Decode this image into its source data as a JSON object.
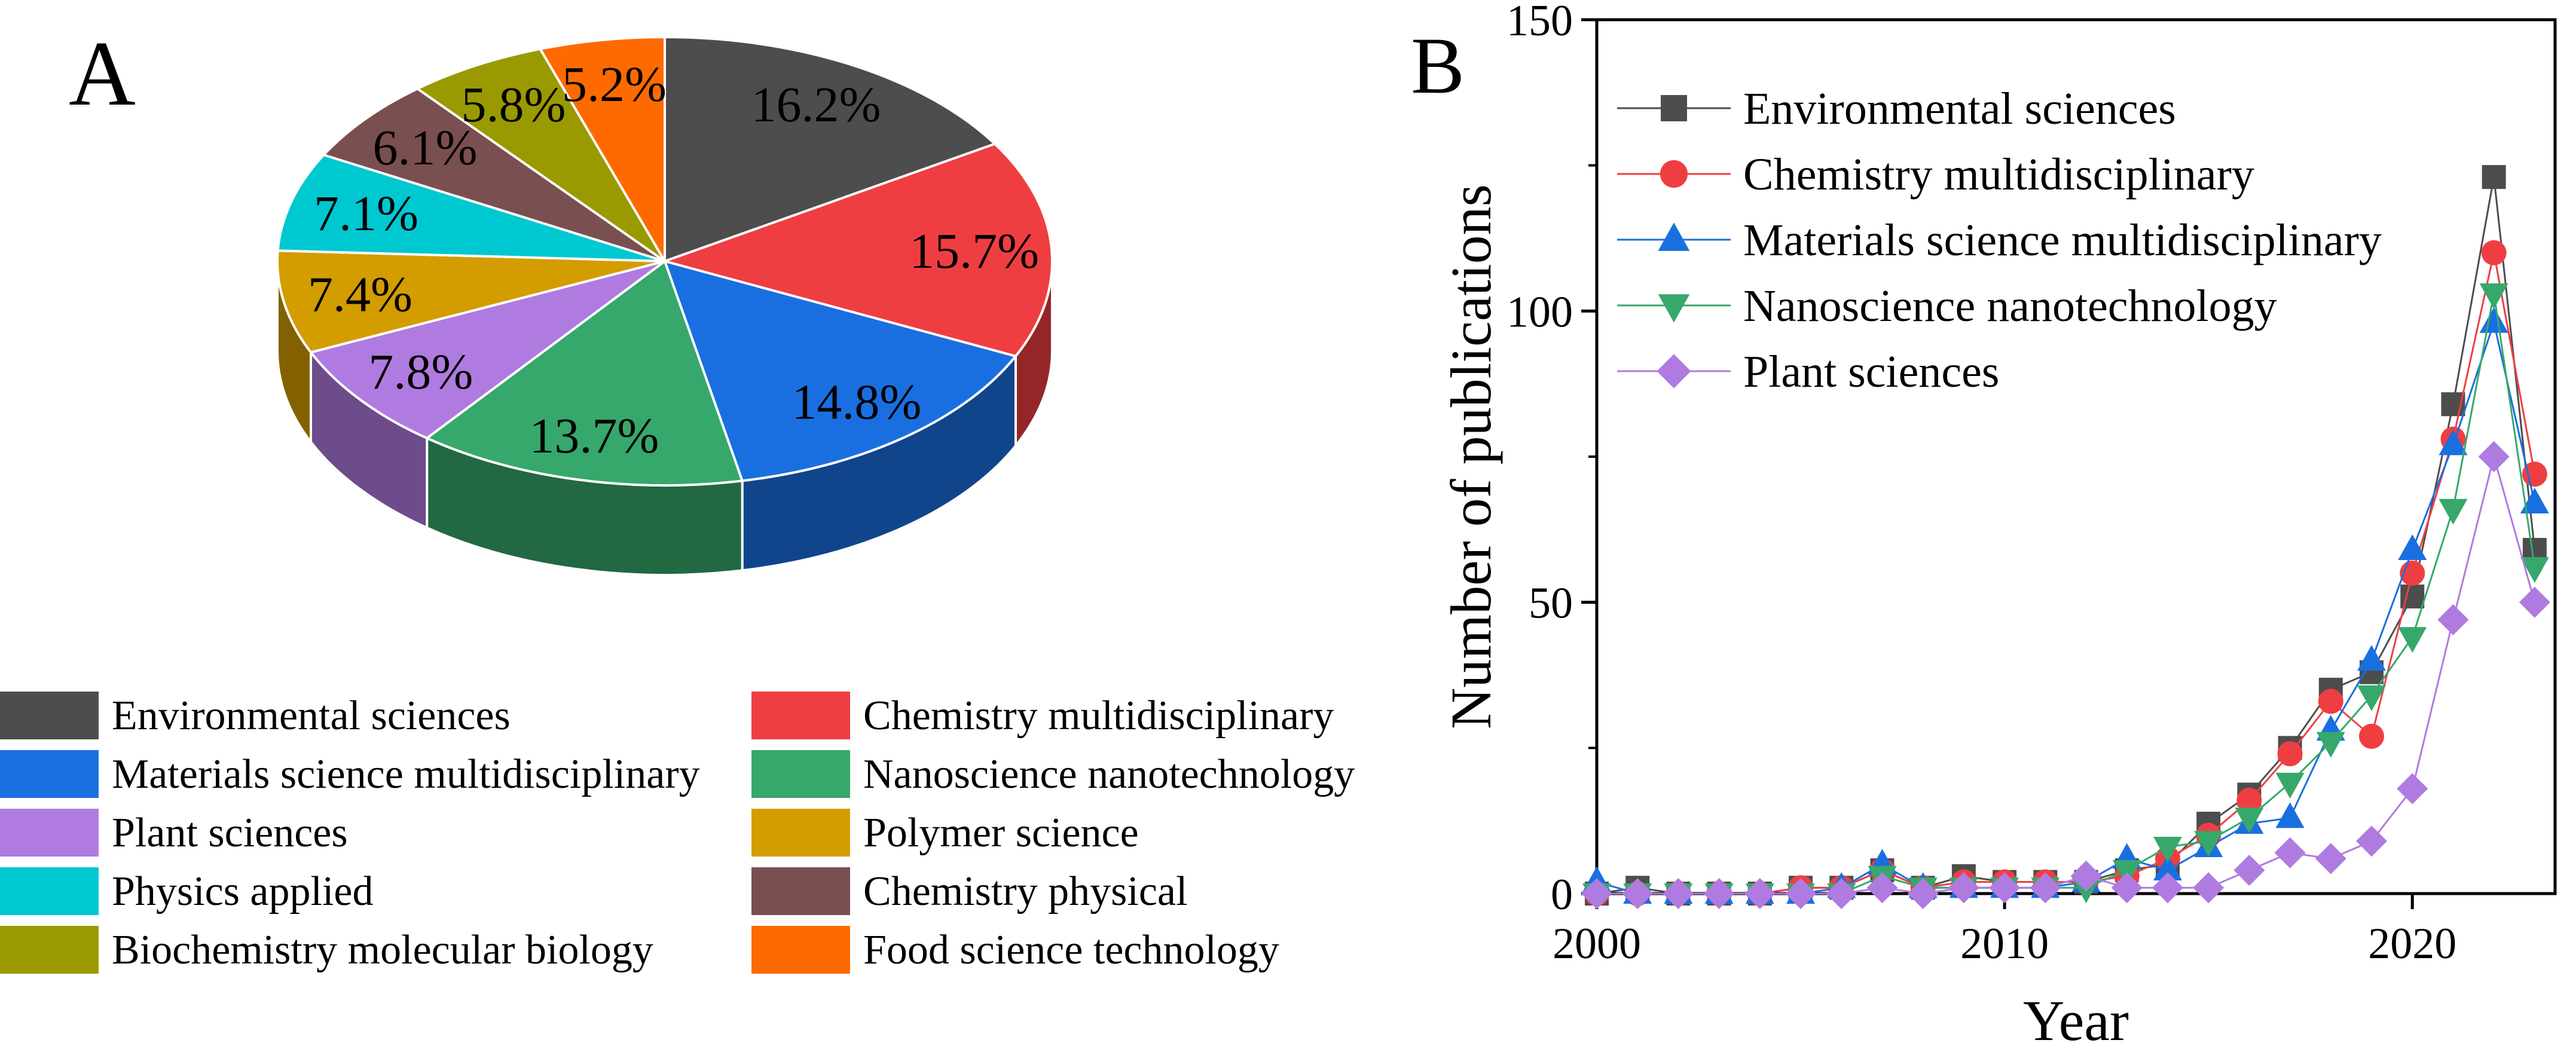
{
  "figure": {
    "panel_a_label": "A",
    "panel_b_label": "B"
  },
  "chart_data": [
    {
      "type": "pie",
      "panel": "A",
      "title": "",
      "legend_position": "bottom",
      "slices": [
        {
          "label": "Environmental sciences",
          "value": 16.2,
          "value_label": "16.2%",
          "color": "#4d4d4d"
        },
        {
          "label": "Chemistry multidisciplinary",
          "value": 15.7,
          "value_label": "15.7%",
          "color": "#ef3e42"
        },
        {
          "label": "Materials science multidisciplinary",
          "value": 14.8,
          "value_label": "14.8%",
          "color": "#1a6fe0"
        },
        {
          "label": "Nanoscience nanotechnology",
          "value": 13.7,
          "value_label": "13.7%",
          "color": "#36a86c"
        },
        {
          "label": "Plant sciences",
          "value": 7.8,
          "value_label": "7.8%",
          "color": "#b07be0"
        },
        {
          "label": "Polymer science",
          "value": 7.4,
          "value_label": "7.4%",
          "color": "#d39d00"
        },
        {
          "label": "Physics applied",
          "value": 7.1,
          "value_label": "7.1%",
          "color": "#00c8d0"
        },
        {
          "label": "Chemistry physical",
          "value": 6.1,
          "value_label": "6.1%",
          "color": "#7a4f4f"
        },
        {
          "label": "Biochemistry molecular biology",
          "value": 5.8,
          "value_label": "5.8%",
          "color": "#9a9a00"
        },
        {
          "label": "Food science technology",
          "value": 5.2,
          "value_label": "5.2%",
          "color": "#ff6a00"
        }
      ]
    },
    {
      "type": "line",
      "panel": "B",
      "title": "",
      "xlabel": "Year",
      "ylabel": "Number of publications",
      "xlim": [
        2000,
        2023.5
      ],
      "ylim": [
        0,
        150
      ],
      "xticks": [
        2000,
        2010,
        2020
      ],
      "yticks": [
        0,
        50,
        100,
        150
      ],
      "legend_position": "top-left",
      "x": [
        2000,
        2001,
        2002,
        2003,
        2004,
        2005,
        2006,
        2007,
        2008,
        2009,
        2010,
        2011,
        2012,
        2013,
        2014,
        2015,
        2016,
        2017,
        2018,
        2019,
        2020,
        2021,
        2022,
        2023
      ],
      "series": [
        {
          "name": "Environmental sciences",
          "marker": "square",
          "color": "#4d4d4d",
          "values": [
            0,
            1,
            0,
            0,
            0,
            1,
            1,
            4,
            1,
            3,
            2,
            2,
            2,
            4,
            5,
            12,
            17,
            25,
            35,
            38,
            51,
            84,
            123,
            59
          ]
        },
        {
          "name": "Chemistry multidisciplinary",
          "marker": "circle",
          "color": "#ef3e42",
          "values": [
            0,
            0,
            0,
            0,
            0,
            1,
            1,
            4,
            1,
            2,
            2,
            2,
            2,
            3,
            6,
            10,
            16,
            24,
            33,
            27,
            55,
            78,
            110,
            72
          ]
        },
        {
          "name": "Materials science multidisciplinary",
          "marker": "triangle-up",
          "color": "#1a6fe0",
          "values": [
            2,
            0,
            0,
            0,
            0,
            0,
            1,
            5,
            1,
            1,
            1,
            1,
            2,
            6,
            4,
            8,
            12,
            13,
            28,
            40,
            59,
            77,
            98,
            67
          ]
        },
        {
          "name": "Nanoscience nanotechnology",
          "marker": "triangle-down",
          "color": "#36a86c",
          "values": [
            0,
            0,
            0,
            0,
            0,
            0,
            0,
            3,
            1,
            1,
            1,
            1,
            1,
            4,
            8,
            9,
            13,
            19,
            26,
            34,
            44,
            66,
            103,
            56
          ]
        },
        {
          "name": "Plant sciences",
          "marker": "diamond",
          "color": "#b07be0",
          "values": [
            0,
            0,
            0,
            0,
            0,
            0,
            0,
            1,
            0,
            1,
            1,
            1,
            3,
            1,
            1,
            1,
            4,
            7,
            6,
            9,
            18,
            47,
            75,
            50
          ]
        }
      ]
    }
  ]
}
